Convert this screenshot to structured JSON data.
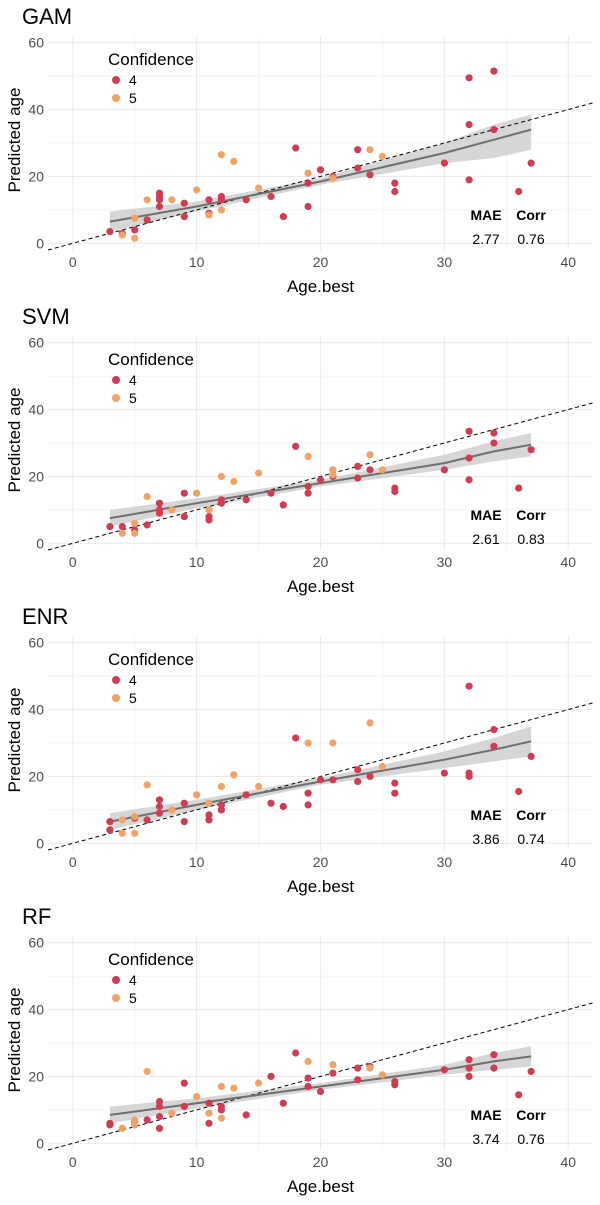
{
  "legend_title": "Confidence",
  "stats_headers": {
    "mae": "MAE",
    "corr": "Corr"
  },
  "colors": {
    "conf4": "#d13c55",
    "conf5": "#f3a266",
    "fit_line": "#6e6e6e",
    "ribbon": "#cfcfcf",
    "ref_line": "#000000",
    "grid": "#ebebeb"
  },
  "chart_data": [
    {
      "type": "scatter",
      "title": "GAM",
      "xlabel": "Age.best",
      "ylabel": "Predicted age",
      "xlim": [
        -2,
        42
      ],
      "ylim": [
        -2,
        62
      ],
      "x_ticks": [
        0,
        10,
        20,
        30,
        40
      ],
      "y_ticks": [
        0,
        20,
        40,
        60
      ],
      "grid": true,
      "legend_position": "top-left",
      "series": [
        {
          "name": "4",
          "points": [
            [
              3,
              3.5
            ],
            [
              4,
              3
            ],
            [
              5,
              4
            ],
            [
              6,
              7
            ],
            [
              7,
              15
            ],
            [
              7,
              14
            ],
            [
              7,
              13
            ],
            [
              7,
              11
            ],
            [
              9,
              12
            ],
            [
              9,
              8
            ],
            [
              11,
              13
            ],
            [
              11,
              9
            ],
            [
              12,
              14
            ],
            [
              12,
              13
            ],
            [
              14,
              13
            ],
            [
              16,
              14
            ],
            [
              17,
              8
            ],
            [
              18,
              28.5
            ],
            [
              19,
              18
            ],
            [
              19,
              11
            ],
            [
              20,
              22
            ],
            [
              21,
              20
            ],
            [
              23,
              28
            ],
            [
              23,
              22.5
            ],
            [
              24,
              20.5
            ],
            [
              26,
              18
            ],
            [
              26,
              15.5
            ],
            [
              30,
              24
            ],
            [
              32,
              49.5
            ],
            [
              32,
              35.5
            ],
            [
              32,
              19
            ],
            [
              34,
              51.5
            ],
            [
              34,
              34
            ],
            [
              36,
              15.5
            ],
            [
              37,
              24
            ]
          ]
        },
        {
          "name": "5",
          "points": [
            [
              4,
              2.5
            ],
            [
              5,
              7.5
            ],
            [
              5,
              1.5
            ],
            [
              6,
              13
            ],
            [
              8,
              13
            ],
            [
              10,
              16
            ],
            [
              11,
              8.5
            ],
            [
              12,
              10
            ],
            [
              12,
              26.5
            ],
            [
              13,
              24.5
            ],
            [
              15,
              16.5
            ],
            [
              19,
              21
            ],
            [
              21,
              19.5
            ],
            [
              24,
              28
            ],
            [
              25,
              26
            ]
          ]
        }
      ],
      "fit": {
        "x": [
          3,
          10,
          20,
          30,
          34,
          37
        ],
        "y": [
          6.5,
          11,
          18.5,
          27,
          31,
          34
        ],
        "lo": [
          3.5,
          9.5,
          17.5,
          24,
          25.5,
          28
        ],
        "hi": [
          9.5,
          12.5,
          19.5,
          30,
          35.5,
          38.5
        ]
      },
      "stats": {
        "mae": "2.77",
        "corr": "0.76"
      }
    },
    {
      "type": "scatter",
      "title": "SVM",
      "xlabel": "Age.best",
      "ylabel": "Predicted age",
      "xlim": [
        -2,
        42
      ],
      "ylim": [
        -2,
        62
      ],
      "x_ticks": [
        0,
        10,
        20,
        30,
        40
      ],
      "y_ticks": [
        0,
        20,
        40,
        60
      ],
      "grid": true,
      "legend_position": "top-left",
      "series": [
        {
          "name": "4",
          "points": [
            [
              3,
              5
            ],
            [
              4,
              5
            ],
            [
              5,
              4
            ],
            [
              6,
              5.5
            ],
            [
              7,
              9
            ],
            [
              7,
              10
            ],
            [
              7,
              12
            ],
            [
              9,
              15
            ],
            [
              9,
              8
            ],
            [
              11,
              8
            ],
            [
              11,
              7
            ],
            [
              12,
              12
            ],
            [
              12,
              13
            ],
            [
              14,
              13
            ],
            [
              16,
              15
            ],
            [
              17,
              11.5
            ],
            [
              18,
              29
            ],
            [
              19,
              17
            ],
            [
              19,
              15
            ],
            [
              20,
              19
            ],
            [
              21,
              20
            ],
            [
              23,
              23
            ],
            [
              23,
              19.5
            ],
            [
              24,
              22
            ],
            [
              26,
              16.5
            ],
            [
              26,
              15.5
            ],
            [
              30,
              22
            ],
            [
              32,
              33.5
            ],
            [
              32,
              25.5
            ],
            [
              32,
              19
            ],
            [
              34,
              33
            ],
            [
              34,
              30
            ],
            [
              36,
              16.5
            ],
            [
              37,
              28
            ]
          ]
        },
        {
          "name": "5",
          "points": [
            [
              4,
              3
            ],
            [
              5,
              6
            ],
            [
              5,
              3
            ],
            [
              6,
              14
            ],
            [
              8,
              10
            ],
            [
              10,
              15
            ],
            [
              11,
              10
            ],
            [
              12,
              20
            ],
            [
              13,
              18.5
            ],
            [
              15,
              21
            ],
            [
              19,
              26
            ],
            [
              21,
              22
            ],
            [
              21,
              20.5
            ],
            [
              24,
              26.5
            ],
            [
              25,
              22
            ]
          ]
        }
      ],
      "fit": {
        "x": [
          3,
          10,
          20,
          30,
          34,
          37
        ],
        "y": [
          7.5,
          12,
          18,
          24,
          27.5,
          29.5
        ],
        "lo": [
          5,
          10.5,
          17,
          22,
          24.5,
          26
        ],
        "hi": [
          10,
          13.5,
          19,
          26.5,
          30.5,
          33
        ]
      },
      "stats": {
        "mae": "2.61",
        "corr": "0.83"
      }
    },
    {
      "type": "scatter",
      "title": "ENR",
      "xlabel": "Age.best",
      "ylabel": "Predicted age",
      "xlim": [
        -2,
        42
      ],
      "ylim": [
        -2,
        62
      ],
      "x_ticks": [
        0,
        10,
        20,
        30,
        40
      ],
      "y_ticks": [
        0,
        20,
        40,
        60
      ],
      "grid": true,
      "legend_position": "top-left",
      "series": [
        {
          "name": "4",
          "points": [
            [
              3,
              6.5
            ],
            [
              3,
              4
            ],
            [
              5,
              7.5
            ],
            [
              6,
              7
            ],
            [
              7,
              13
            ],
            [
              7,
              11
            ],
            [
              7,
              9
            ],
            [
              9,
              12
            ],
            [
              9,
              6.5
            ],
            [
              11,
              8.5
            ],
            [
              11,
              7
            ],
            [
              12,
              11.5
            ],
            [
              12,
              10
            ],
            [
              14,
              14.5
            ],
            [
              16,
              12
            ],
            [
              17,
              11
            ],
            [
              18,
              31.5
            ],
            [
              19,
              15
            ],
            [
              19,
              11.5
            ],
            [
              20,
              19
            ],
            [
              21,
              19
            ],
            [
              23,
              22
            ],
            [
              23,
              18.5
            ],
            [
              24,
              20
            ],
            [
              26,
              18
            ],
            [
              26,
              15
            ],
            [
              30,
              21
            ],
            [
              32,
              47
            ],
            [
              32,
              21
            ],
            [
              32,
              20
            ],
            [
              34,
              34
            ],
            [
              34,
              29
            ],
            [
              36,
              15.5
            ],
            [
              37,
              26
            ]
          ]
        },
        {
          "name": "5",
          "points": [
            [
              4,
              3
            ],
            [
              4,
              7
            ],
            [
              5,
              3
            ],
            [
              5,
              8
            ],
            [
              6,
              17.5
            ],
            [
              8,
              10
            ],
            [
              10,
              14.5
            ],
            [
              11,
              12
            ],
            [
              12,
              17
            ],
            [
              13,
              20.5
            ],
            [
              15,
              17
            ],
            [
              19,
              30
            ],
            [
              21,
              30
            ],
            [
              24,
              36
            ],
            [
              25,
              23
            ]
          ]
        }
      ],
      "fit": {
        "x": [
          3,
          10,
          20,
          30,
          34,
          37
        ],
        "y": [
          6.5,
          11.5,
          18.5,
          25,
          28,
          30.5
        ],
        "lo": [
          4,
          10,
          17.5,
          22.5,
          24.5,
          26
        ],
        "hi": [
          9,
          13,
          19.5,
          27.5,
          31.5,
          35
        ]
      },
      "stats": {
        "mae": "3.86",
        "corr": "0.74"
      }
    },
    {
      "type": "scatter",
      "title": "RF",
      "xlabel": "Age.best",
      "ylabel": "Predicted age",
      "xlim": [
        -2,
        42
      ],
      "ylim": [
        -2,
        62
      ],
      "x_ticks": [
        0,
        10,
        20,
        30,
        40
      ],
      "y_ticks": [
        0,
        20,
        40,
        60
      ],
      "grid": true,
      "legend_position": "top-left",
      "series": [
        {
          "name": "4",
          "points": [
            [
              3,
              6
            ],
            [
              3,
              5.5
            ],
            [
              5,
              6.5
            ],
            [
              6,
              7
            ],
            [
              7,
              12.5
            ],
            [
              7,
              11
            ],
            [
              7,
              8
            ],
            [
              7,
              4.5
            ],
            [
              9,
              18
            ],
            [
              9,
              11
            ],
            [
              11,
              12
            ],
            [
              11,
              6
            ],
            [
              12,
              11
            ],
            [
              12,
              10
            ],
            [
              14,
              8.5
            ],
            [
              16,
              20
            ],
            [
              17,
              12
            ],
            [
              18,
              27
            ],
            [
              19,
              19.5
            ],
            [
              19,
              17
            ],
            [
              20,
              15.5
            ],
            [
              21,
              21
            ],
            [
              23,
              22.5
            ],
            [
              23,
              19
            ],
            [
              24,
              23
            ],
            [
              26,
              18.5
            ],
            [
              26,
              17.5
            ],
            [
              30,
              22
            ],
            [
              32,
              25
            ],
            [
              32,
              22.5
            ],
            [
              32,
              20
            ],
            [
              34,
              26.5
            ],
            [
              34,
              22.5
            ],
            [
              36,
              14.5
            ],
            [
              37,
              21.5
            ]
          ]
        },
        {
          "name": "5",
          "points": [
            [
              4,
              4.5
            ],
            [
              5,
              5.5
            ],
            [
              5,
              7
            ],
            [
              6,
              21.5
            ],
            [
              8,
              9
            ],
            [
              10,
              14
            ],
            [
              11,
              9
            ],
            [
              12,
              17
            ],
            [
              12,
              7.5
            ],
            [
              13,
              16.5
            ],
            [
              15,
              18
            ],
            [
              19,
              24.5
            ],
            [
              21,
              23.5
            ],
            [
              24,
              22.5
            ],
            [
              25,
              20.5
            ]
          ]
        }
      ],
      "fit": {
        "x": [
          3,
          10,
          20,
          30,
          34,
          37
        ],
        "y": [
          8.5,
          12,
          17,
          22,
          24.5,
          26
        ],
        "lo": [
          6,
          10.5,
          16,
          20.5,
          22,
          23
        ],
        "hi": [
          11,
          13.5,
          18,
          23.5,
          27,
          29
        ]
      },
      "stats": {
        "mae": "3.74",
        "corr": "0.76"
      }
    }
  ]
}
